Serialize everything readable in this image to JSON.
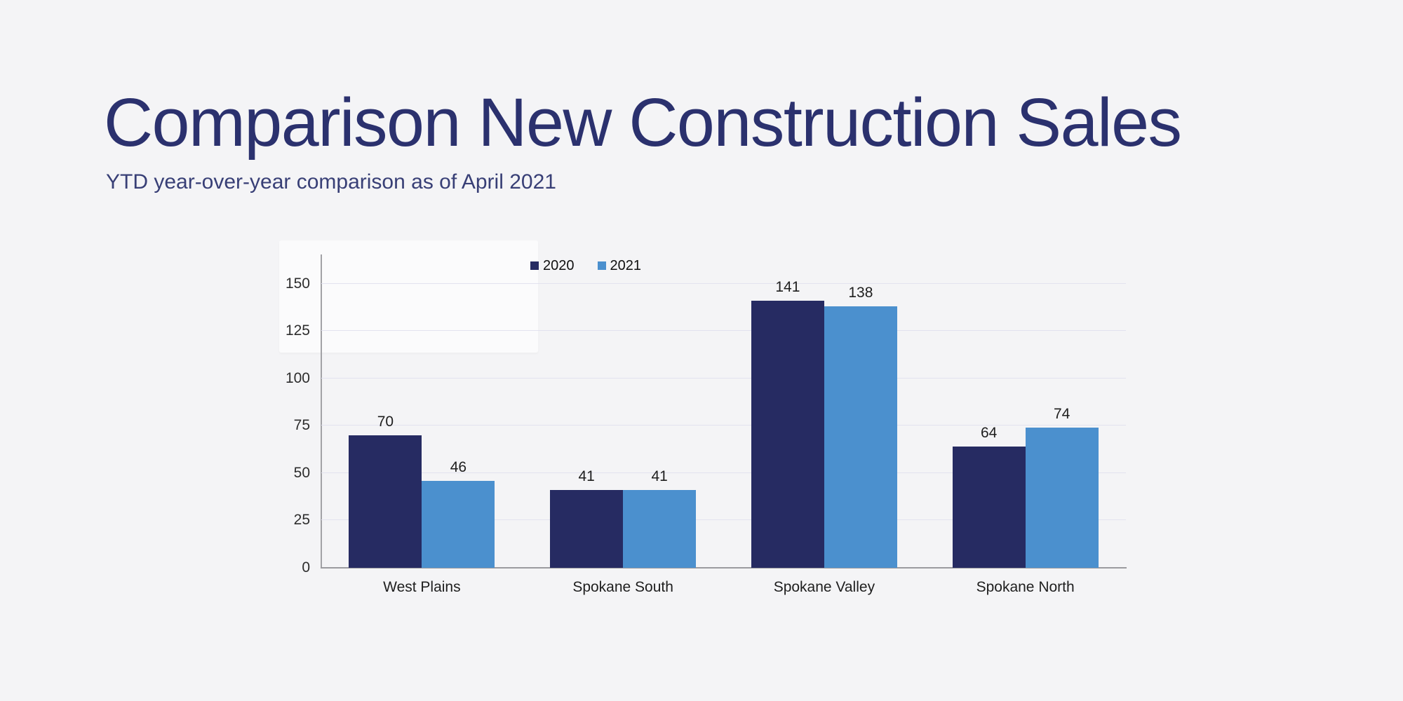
{
  "slide": {
    "title": "Comparison New Construction Sales",
    "subtitle": "YTD year-over-year comparison as of April 2021",
    "background_color": "#f4f4f6",
    "title_color": "#2b316e",
    "subtitle_color": "#383f76"
  },
  "chart_data": {
    "type": "bar",
    "title": "",
    "xlabel": "",
    "ylabel": "",
    "categories": [
      "West Plains",
      "Spokane South",
      "Spokane Valley",
      "Spokane North"
    ],
    "series": [
      {
        "name": "2020",
        "color": "#262b62",
        "values": [
          70,
          41,
          141,
          64
        ]
      },
      {
        "name": "2021",
        "color": "#4b90ce",
        "values": [
          46,
          41,
          138,
          74
        ]
      }
    ],
    "value_labels": [
      [
        "70",
        "46"
      ],
      [
        "41",
        "41"
      ],
      [
        "141",
        "138"
      ],
      [
        "64",
        "74"
      ]
    ],
    "y_ticks": [
      0,
      25,
      50,
      75,
      100,
      125,
      150
    ],
    "ylim": [
      0,
      165.5
    ],
    "grid": "horizontal",
    "gridline_color": "#e2e2ef",
    "axis_color": "#a2a2a6",
    "tick_label_color": "#2d2d2d",
    "value_label_color": "#1e1e1e",
    "legend_position": "top",
    "legend_entries": [
      "2020",
      "2021"
    ]
  }
}
